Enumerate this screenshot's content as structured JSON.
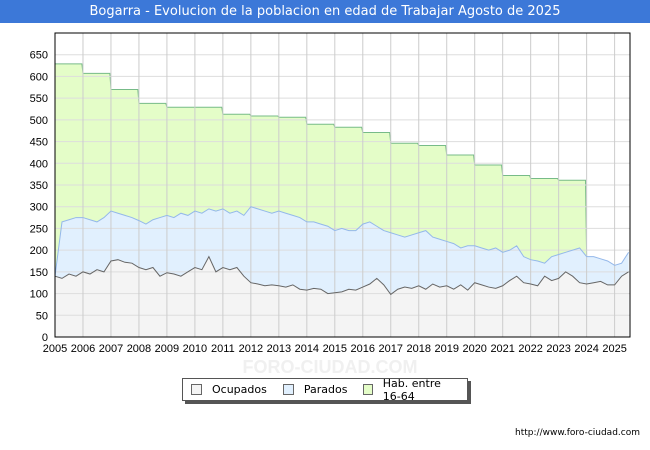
{
  "title": "Bogarra - Evolucion de la poblacion en edad de Trabajar Agosto de 2025",
  "footer_url": "http://www.foro-ciudad.com",
  "watermark": "FORO-CIUDAD.COM",
  "chart_data": {
    "type": "area",
    "title": "Bogarra - Evolucion de la poblacion en edad de Trabajar Agosto de 2025",
    "xlabel": "",
    "ylabel": "",
    "ylim": [
      0,
      700
    ],
    "xlim": [
      2005,
      2025.55
    ],
    "yticks": [
      0,
      50,
      100,
      150,
      200,
      250,
      300,
      350,
      400,
      450,
      500,
      550,
      600,
      650
    ],
    "xticks": [
      2005,
      2006,
      2007,
      2008,
      2009,
      2010,
      2011,
      2012,
      2013,
      2014,
      2015,
      2016,
      2017,
      2018,
      2019,
      2020,
      2021,
      2022,
      2023,
      2024,
      2025
    ],
    "grid": true,
    "legend_position": "bottom",
    "quarterly_x_start": 2005,
    "quarterly_step": 0.25,
    "series": [
      {
        "name": "Ocupados",
        "color": "#f4f4f4",
        "line": "#666666",
        "values": [
          140,
          135,
          145,
          140,
          150,
          145,
          155,
          150,
          175,
          178,
          172,
          170,
          160,
          155,
          160,
          140,
          148,
          145,
          140,
          150,
          160,
          155,
          185,
          150,
          160,
          155,
          160,
          140,
          125,
          122,
          118,
          120,
          118,
          115,
          120,
          110,
          108,
          112,
          110,
          100,
          102,
          104,
          110,
          108,
          115,
          122,
          135,
          120,
          98,
          110,
          115,
          112,
          118,
          110,
          122,
          115,
          118,
          110,
          120,
          108,
          125,
          120,
          115,
          112,
          118,
          130,
          140,
          125,
          122,
          118,
          140,
          130,
          135,
          150,
          140,
          125,
          122,
          125,
          128,
          120,
          120,
          140,
          150
        ]
      },
      {
        "name": "Parados",
        "color": "#e1f0fe",
        "line": "#94b8ea",
        "values": [
          140,
          265,
          270,
          275,
          275,
          270,
          265,
          275,
          290,
          285,
          280,
          275,
          268,
          260,
          270,
          275,
          280,
          275,
          285,
          280,
          290,
          285,
          295,
          290,
          295,
          285,
          290,
          280,
          300,
          295,
          290,
          285,
          290,
          285,
          280,
          275,
          265,
          265,
          260,
          255,
          245,
          250,
          245,
          245,
          260,
          265,
          255,
          245,
          240,
          235,
          230,
          235,
          240,
          245,
          230,
          225,
          220,
          215,
          205,
          210,
          210,
          205,
          200,
          205,
          195,
          200,
          210,
          185,
          178,
          175,
          170,
          185,
          190,
          195,
          200,
          205,
          185,
          185,
          180,
          175,
          165,
          170,
          195
        ]
      },
      {
        "name": "Hab. entre 16-64",
        "color": "#e4fdc8",
        "line": "#77bb88",
        "years": [
          2005,
          2006,
          2007,
          2008,
          2009,
          2010,
          2011,
          2012,
          2013,
          2014,
          2015,
          2016,
          2017,
          2018,
          2019,
          2020,
          2021,
          2022,
          2023
        ],
        "values": [
          629,
          607,
          570,
          538,
          529,
          529,
          513,
          509,
          506,
          490,
          483,
          471,
          446,
          441,
          419,
          396,
          372,
          365,
          361
        ]
      }
    ]
  }
}
